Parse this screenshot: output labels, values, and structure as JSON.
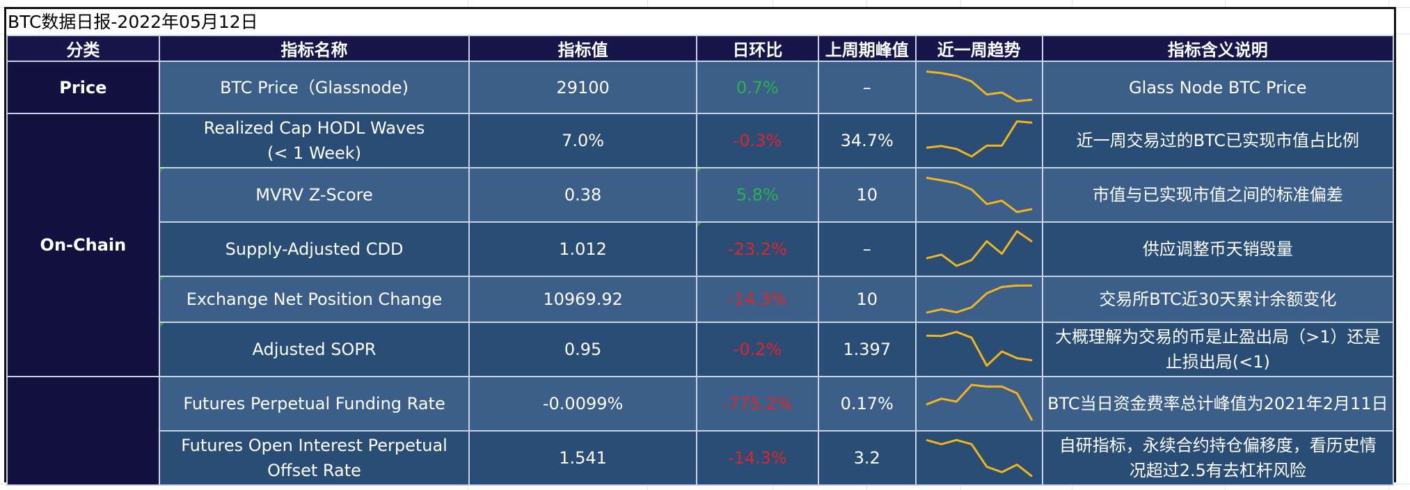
{
  "title": "BTC数据日报-2022年05月12日",
  "headers": {
    "category": "分类",
    "name": "指标名称",
    "value": "指标值",
    "dod": "日环比",
    "peak": "上周期峰值",
    "trend": "近一周趋势",
    "desc": "指标含义说明"
  },
  "categories": {
    "price": "Price",
    "onchain": "On-Chain",
    "derivatives": ""
  },
  "colors": {
    "header_bg": "#16164a",
    "row_light": "#3b5f88",
    "row_dark": "#294d75",
    "positive": "#2bb24c",
    "negative": "#e0242a",
    "sparkline": "#f2b51b"
  },
  "rows": [
    {
      "name_lines": [
        "BTC Price（Glassnode)"
      ],
      "value": "29100",
      "dod": "0.7%",
      "dod_sign": "pos",
      "peak": "–",
      "desc_lines": [
        "Glass Node BTC Price"
      ],
      "trend": [
        9,
        8.6,
        7.9,
        6.5,
        3.2,
        3.7,
        1.5,
        1.9
      ]
    },
    {
      "name_lines": [
        "Realized Cap HODL Waves",
        "(< 1 Week)"
      ],
      "value": "7.0%",
      "dod": "-0.3%",
      "dod_sign": "neg",
      "peak": "34.7%",
      "desc_lines": [
        "近一周交易过的BTC已实现市值占比例"
      ],
      "trend": [
        3.3,
        3.7,
        3.0,
        1.2,
        3.8,
        3.8,
        9.6,
        9.3
      ]
    },
    {
      "name_lines": [
        "MVRV Z-Score"
      ],
      "value": "0.38",
      "dod": "5.8%",
      "dod_sign": "pos",
      "peak": "10",
      "desc_lines": [
        "市值与已实现市值之间的标准偏差"
      ],
      "trend": [
        9.1,
        8.5,
        7.8,
        6.3,
        2.8,
        3.6,
        0.9,
        1.6
      ]
    },
    {
      "name_lines": [
        "Supply-Adjusted CDD"
      ],
      "value": "1.012",
      "dod": "-23.2%",
      "dod_sign": "neg",
      "peak": "–",
      "desc_lines": [
        "供应调整币天销毁量"
      ],
      "trend": [
        2.8,
        3.7,
        1.0,
        2.4,
        6.9,
        3.9,
        9.3,
        6.8
      ]
    },
    {
      "name_lines": [
        "Exchange Net Position Change"
      ],
      "value": "10969.92",
      "dod": "-14.3%",
      "dod_sign": "neg",
      "peak": "10",
      "desc_lines": [
        "交易所BTC近30天累计余额变化"
      ],
      "trend": [
        1.0,
        2.0,
        1.1,
        2.6,
        6.8,
        8.7,
        9.1,
        9.1
      ]
    },
    {
      "name_lines": [
        "Adjusted SOPR"
      ],
      "value": "0.95",
      "dod": "-0.2%",
      "dod_sign": "neg",
      "peak": "1.397",
      "desc_lines": [
        "大概理解为交易的币是止盈出局（>1）还是",
        "止损出局(<1)"
      ],
      "trend": [
        8.3,
        8.2,
        9.2,
        7.8,
        1.1,
        4.5,
        2.9,
        2.4
      ]
    },
    {
      "name_lines": [
        "Futures Perpetual Funding Rate"
      ],
      "value": "-0.0099%",
      "dod": "-775.2%",
      "dod_sign": "neg",
      "peak": "0.17%",
      "desc_lines": [
        "BTC当日资金费率总计峰值为2021年2月11日"
      ],
      "trend": [
        4.8,
        6.2,
        5.5,
        9.5,
        9.1,
        9.1,
        7.5,
        1.0
      ]
    },
    {
      "name_lines": [
        "Futures Open Interest Perpetual",
        "Offset Rate"
      ],
      "value": "1.541",
      "dod": "-14.3%",
      "dod_sign": "neg",
      "peak": "3.2",
      "desc_lines": [
        "自研指标，永续合约持仓偏移度，看历史情",
        "况超过2.5有去杠杆风险"
      ],
      "trend": [
        9.3,
        8.3,
        9.3,
        8.3,
        2.9,
        1.6,
        3.4,
        0.6
      ]
    }
  ]
}
